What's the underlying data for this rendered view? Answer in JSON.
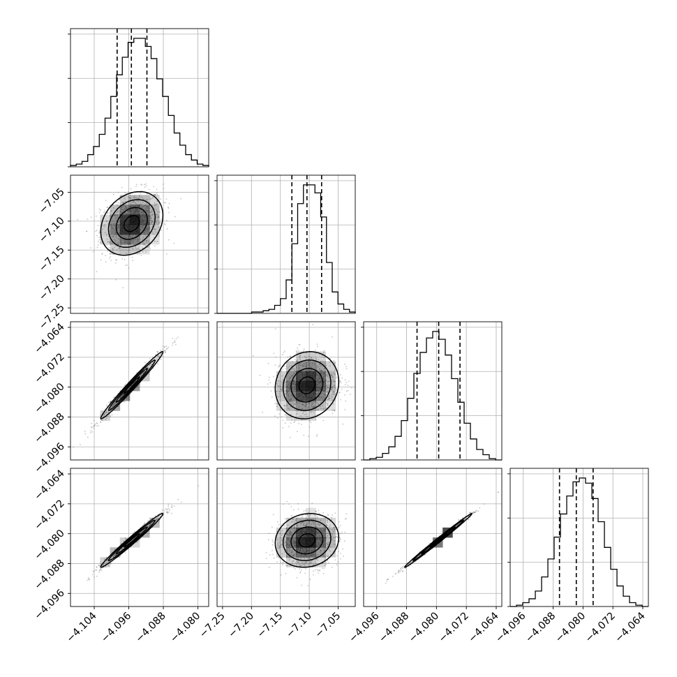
{
  "chart_data": {
    "type": "corner",
    "n_params": 4,
    "params": [
      {
        "index": 0,
        "quantiles": [
          -4.0987,
          -4.0954,
          -4.0918
        ]
      },
      {
        "index": 1,
        "quantiles": [
          -7.1301,
          -7.104,
          -7.0787
        ]
      },
      {
        "index": 2,
        "quantiles": [
          -4.0852,
          -4.0794,
          -4.0737
        ]
      },
      {
        "index": 3,
        "quantiles": [
          -4.0863,
          -4.0818,
          -4.0773
        ]
      }
    ],
    "axis_ranges": {
      "p0": [
        -4.1095,
        -4.0775
      ],
      "p1": [
        -7.2595,
        -7.0205
      ],
      "p2": [
        -4.0995,
        -4.0625
      ],
      "p3": [
        -4.0995,
        -4.0625
      ]
    },
    "tick_values": {
      "p0": [
        -4.104,
        -4.096,
        -4.088,
        -4.08
      ],
      "p1": [
        -7.25,
        -7.2,
        -7.15,
        -7.1,
        -7.05
      ],
      "p2": [
        -4.096,
        -4.088,
        -4.08,
        -4.072,
        -4.064
      ],
      "p3": [
        -4.096,
        -4.088,
        -4.08,
        -4.072,
        -4.064
      ]
    },
    "tick_labels": {
      "p0": [
        "−4.104",
        "−4.096",
        "−4.088",
        "−4.080"
      ],
      "p1": [
        "−7.25",
        "−7.20",
        "−7.15",
        "−7.10",
        "−7.05"
      ],
      "p2": [
        "−4.096",
        "−4.088",
        "−4.080",
        "−4.072",
        "−4.064"
      ],
      "p3": [
        "−4.096",
        "−4.088",
        "−4.080",
        "−4.072",
        "−4.064"
      ]
    },
    "histograms": [
      {
        "param": 0,
        "counts": [
          1,
          2,
          4,
          9,
          15,
          24,
          36,
          52,
          68,
          81,
          92,
          95,
          95,
          89,
          80,
          65,
          52,
          38,
          25,
          16,
          9,
          5,
          2,
          1
        ]
      },
      {
        "param": 1,
        "counts": [
          0,
          0,
          0,
          0,
          0,
          0,
          1,
          1,
          2,
          3,
          6,
          11,
          25,
          52,
          82,
          96,
          96,
          90,
          72,
          38,
          16,
          7,
          3,
          1
        ]
      },
      {
        "param": 2,
        "counts": [
          0,
          1,
          2,
          5,
          10,
          18,
          30,
          47,
          66,
          82,
          93,
          98,
          92,
          80,
          62,
          44,
          28,
          16,
          8,
          4,
          1,
          0
        ]
      },
      {
        "param": 3,
        "counts": [
          0,
          1,
          3,
          6,
          12,
          23,
          37,
          54,
          72,
          86,
          97,
          100,
          96,
          84,
          66,
          46,
          29,
          16,
          8,
          3,
          1,
          0
        ]
      }
    ],
    "pairs": [
      {
        "x": 0,
        "y": 1,
        "mean": [
          -4.0953,
          -7.104
        ],
        "sd": [
          0.0036,
          0.0275
        ],
        "corr": 0.25
      },
      {
        "x": 0,
        "y": 2,
        "mean": [
          -4.0953,
          -4.0795
        ],
        "sd": [
          0.0036,
          0.0045
        ],
        "corr": 0.985
      },
      {
        "x": 1,
        "y": 2,
        "mean": [
          -7.104,
          -4.0795
        ],
        "sd": [
          0.0275,
          0.0045
        ],
        "corr": 0.1
      },
      {
        "x": 0,
        "y": 3,
        "mean": [
          -4.0953,
          -4.0818
        ],
        "sd": [
          0.0036,
          0.0036
        ],
        "corr": 0.985
      },
      {
        "x": 1,
        "y": 3,
        "mean": [
          -7.104,
          -4.0818
        ],
        "sd": [
          0.0275,
          0.0036
        ],
        "corr": 0.1
      },
      {
        "x": 2,
        "y": 3,
        "mean": [
          -4.0795,
          -4.0818
        ],
        "sd": [
          0.0045,
          0.0036
        ],
        "corr": 0.995
      }
    ],
    "contour_levels_sigma": [
      0.5,
      1.0,
      1.5,
      2.0
    ],
    "grid": true,
    "colors": {
      "line": "#000000",
      "grid": "#b0b0b0",
      "points": "#7f7f7f",
      "density": "#000000"
    }
  }
}
